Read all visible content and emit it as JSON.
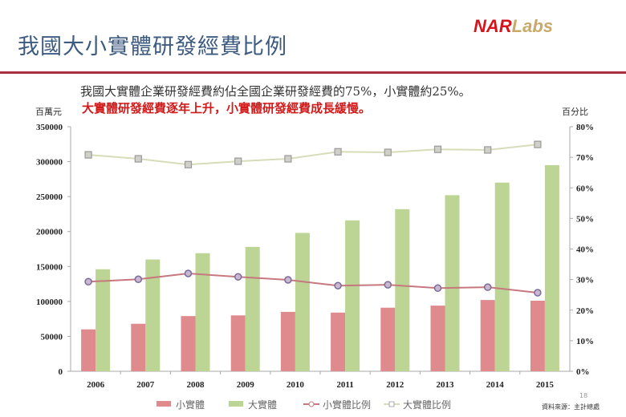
{
  "header": {
    "title": "我國大小實體研發經費比例",
    "logo_a": "NAR",
    "logo_b": "Labs"
  },
  "subtitle_1": "我國大實體企業研發經費約佔全國企業研發經費的75%，小實體約25%。",
  "subtitle_2": "大實體研發經費逐年上升，小實體研發經費成長緩慢。",
  "footer": {
    "page": "18",
    "source": "資料來源：主計總處"
  },
  "colors": {
    "small": "#df8a8c",
    "large": "#bcd494",
    "small_line": "#c7787f",
    "large_line": "#d8dcb8",
    "rule": "#a8323f"
  },
  "chart_data": {
    "type": "bar+line",
    "categories": [
      "2006",
      "2007",
      "2008",
      "2009",
      "2010",
      "2011",
      "2012",
      "2013",
      "2014",
      "2015"
    ],
    "ylabel_left": "百萬元",
    "ylabel_right": "百分比",
    "ylim_left": [
      0,
      350000
    ],
    "ylim_right": [
      0,
      80
    ],
    "yticks_left": [
      "0",
      "50000",
      "100000",
      "150000",
      "200000",
      "250000",
      "300000",
      "350000"
    ],
    "yticks_right": [
      "0%",
      "10%",
      "20%",
      "30%",
      "40%",
      "50%",
      "60%",
      "70%",
      "80%"
    ],
    "series": [
      {
        "name": "小實體",
        "type": "bar",
        "axis": "left",
        "values": [
          60000,
          68000,
          79000,
          80000,
          85000,
          84000,
          91000,
          94000,
          102000,
          101000
        ]
      },
      {
        "name": "大實體",
        "type": "bar",
        "axis": "left",
        "values": [
          146000,
          160000,
          169000,
          178000,
          198000,
          216000,
          232000,
          252000,
          270000,
          295000
        ]
      },
      {
        "name": "小實體比例",
        "type": "line",
        "axis": "right",
        "values": [
          29.3,
          30.1,
          32.0,
          30.9,
          29.9,
          28.0,
          28.3,
          27.2,
          27.5,
          25.7
        ]
      },
      {
        "name": "大實體比例",
        "type": "line",
        "axis": "right",
        "values": [
          70.8,
          69.5,
          67.6,
          68.7,
          69.5,
          71.8,
          71.6,
          72.6,
          72.4,
          74.2
        ]
      }
    ],
    "legend": "bottom",
    "grid": false
  }
}
